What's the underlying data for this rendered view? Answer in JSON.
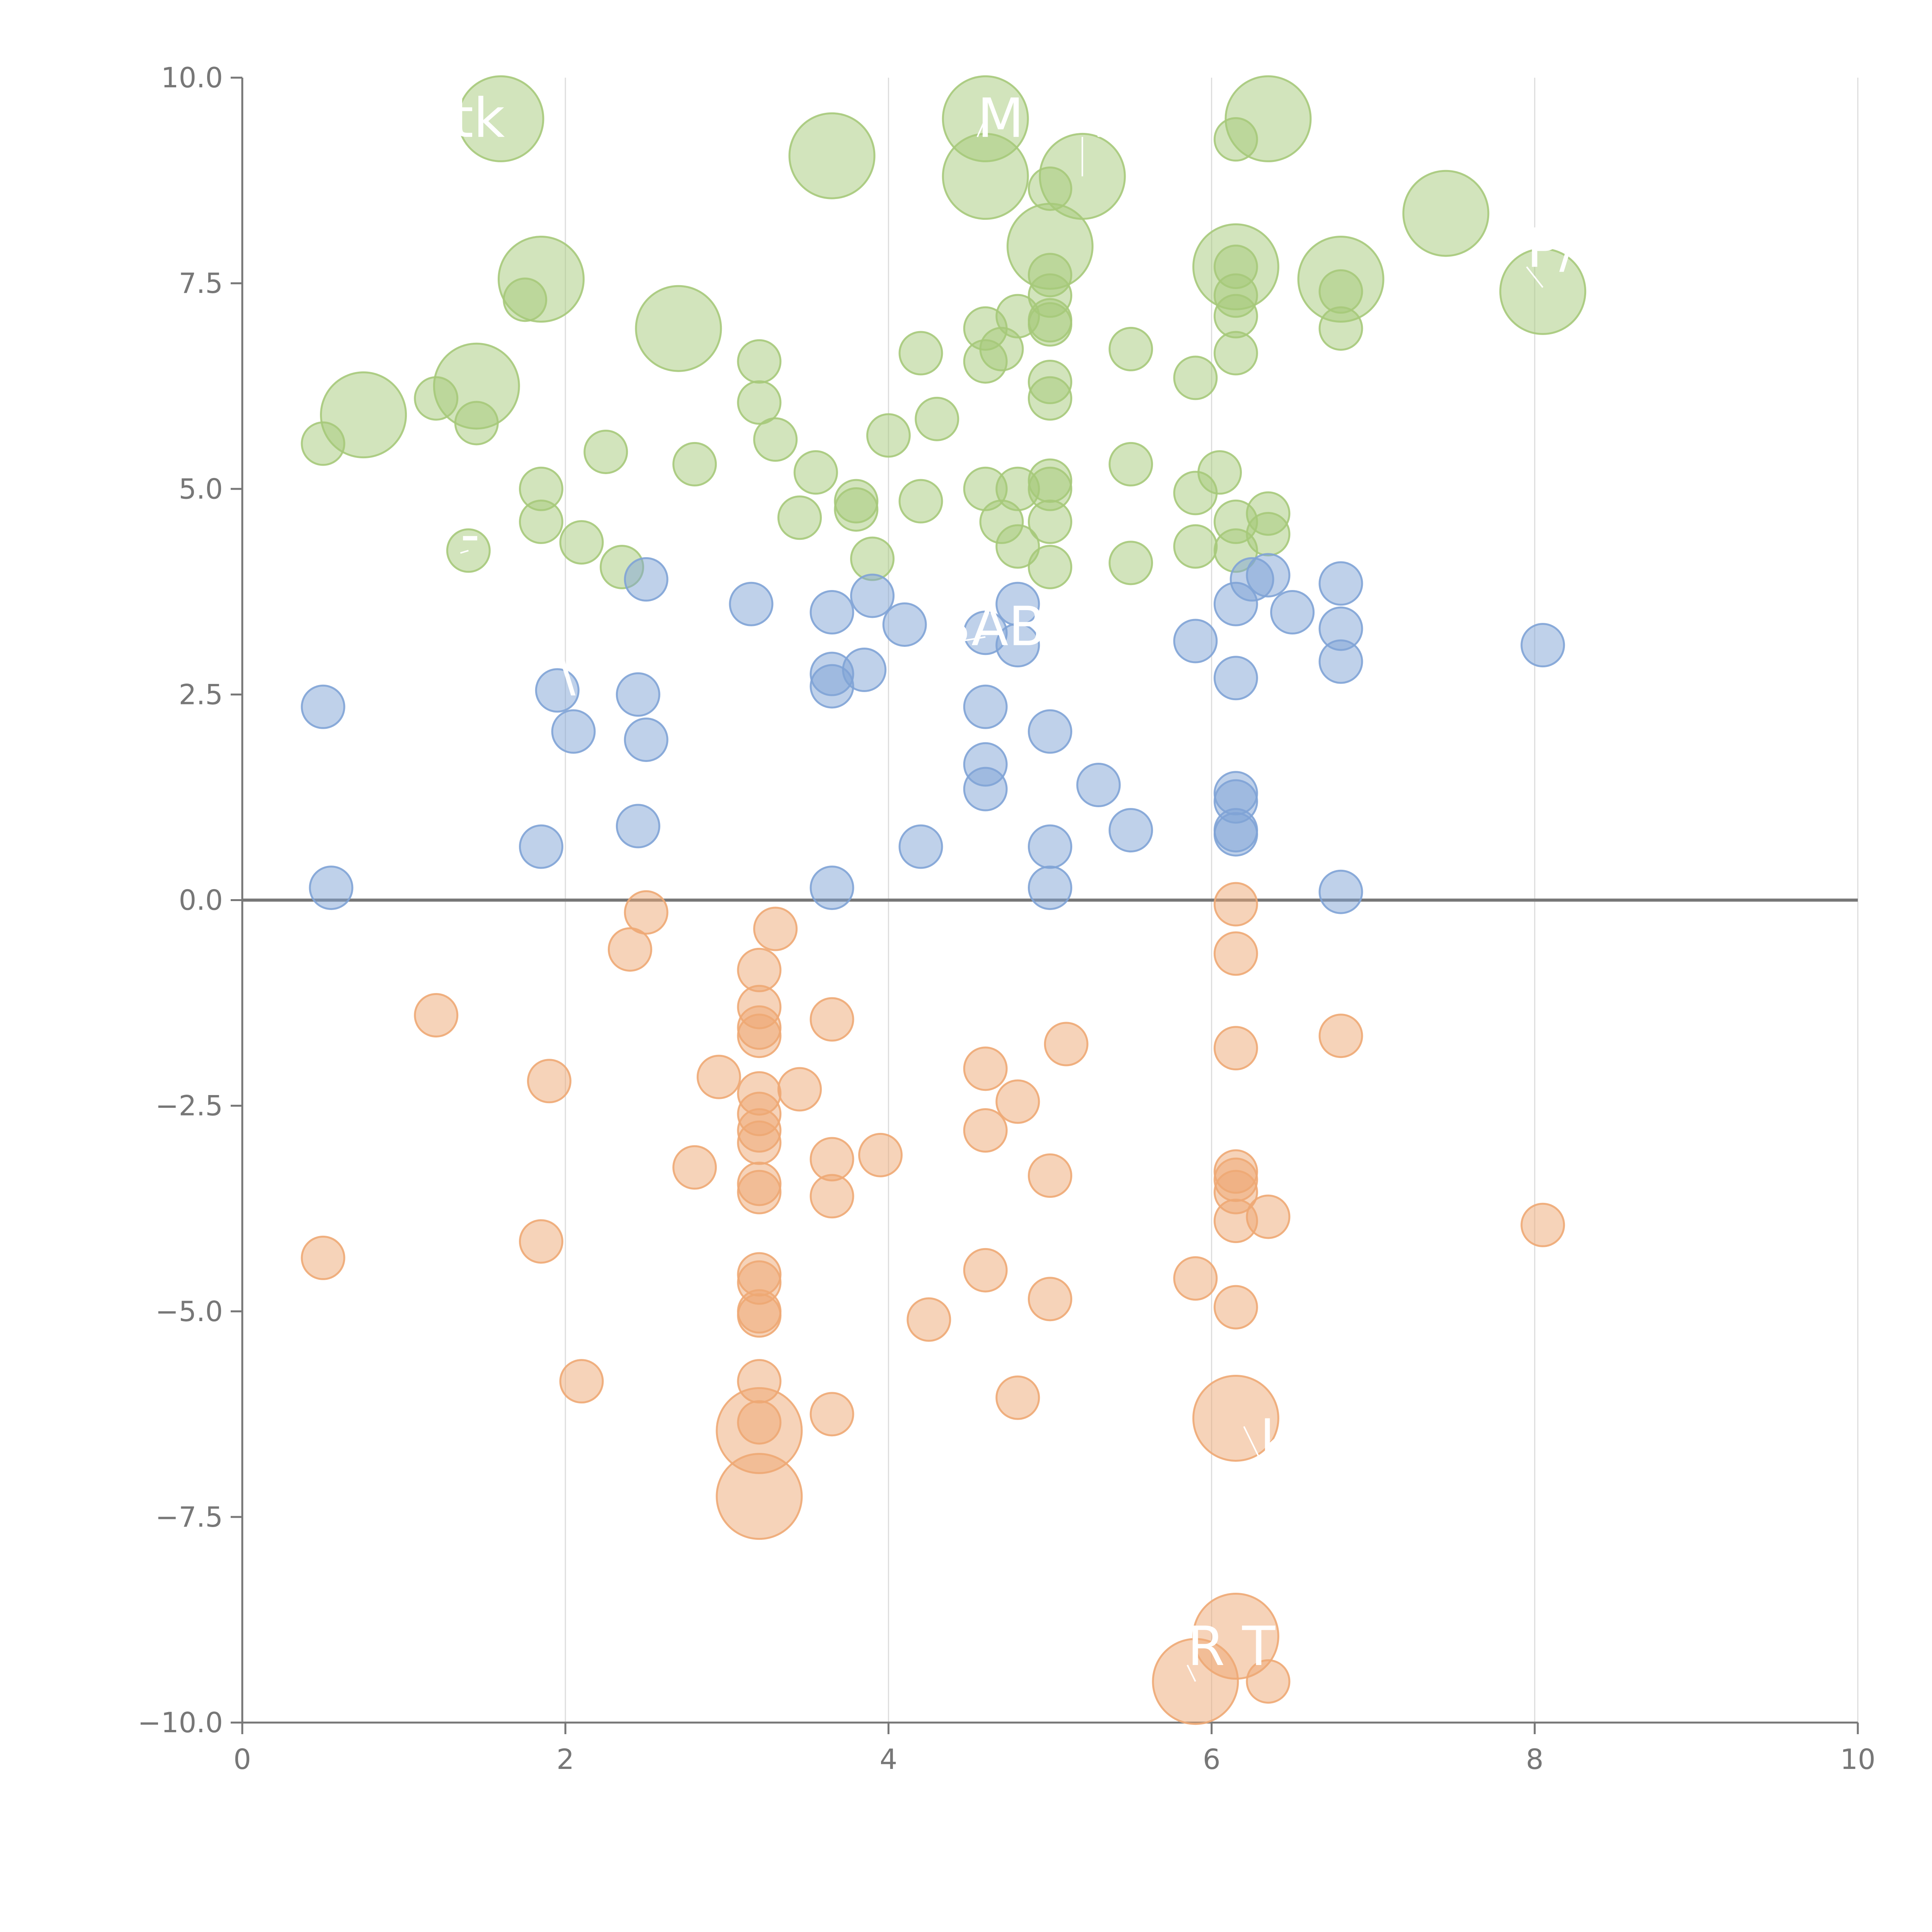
{
  "chart_data": {
    "type": "scatter",
    "title": "",
    "xlabel": "",
    "ylabel": "",
    "xlim": [
      0,
      10
    ],
    "ylim": [
      -10,
      10
    ],
    "x_ticks": [
      0,
      2,
      4,
      6,
      8,
      10
    ],
    "x_tick_labels": [
      "0",
      "2",
      "4",
      "6",
      "8",
      "10"
    ],
    "y_ticks": [
      10,
      7.5,
      5,
      2.5,
      0,
      -2.5,
      -5,
      -7.5,
      -10
    ],
    "y_tick_labels": [
      "10.0",
      "7.5",
      "5.0",
      "2.5",
      "0.0",
      "−2.5",
      "−5.0",
      "−7.5",
      "−10.0"
    ],
    "grid": "vertical",
    "reference_line_y": 0,
    "colors": {
      "high": "#a6c97a",
      "mid": "#7fa3d6",
      "low": "#eea874"
    },
    "series": [
      {
        "name": "high",
        "points": [
          [
            1.6,
            9.5,
            2
          ],
          [
            4.6,
            9.5,
            2
          ],
          [
            6.35,
            9.5,
            2
          ],
          [
            3.65,
            9.05,
            2
          ],
          [
            4.6,
            8.8,
            2
          ],
          [
            5.2,
            8.8,
            2
          ],
          [
            7.45,
            8.35,
            2
          ],
          [
            5.0,
            7.95,
            2
          ],
          [
            1.85,
            7.55,
            2
          ],
          [
            6.15,
            7.7,
            2
          ],
          [
            6.8,
            7.55,
            2
          ],
          [
            8.05,
            7.4,
            2
          ],
          [
            2.7,
            6.95,
            2
          ],
          [
            1.45,
            6.25,
            2
          ],
          [
            0.75,
            5.9,
            2
          ],
          [
            6.15,
            9.25,
            1
          ],
          [
            5.0,
            8.65,
            1
          ],
          [
            5.0,
            7.6,
            1
          ],
          [
            6.15,
            7.7,
            1
          ],
          [
            1.75,
            7.3,
            1
          ],
          [
            5.0,
            7.35,
            1
          ],
          [
            6.15,
            7.35,
            1
          ],
          [
            6.8,
            7.4,
            1
          ],
          [
            4.8,
            7.1,
            1
          ],
          [
            6.15,
            7.1,
            1
          ],
          [
            5.0,
            7.05,
            1
          ],
          [
            5.0,
            7.0,
            1
          ],
          [
            4.6,
            6.95,
            1
          ],
          [
            6.8,
            6.95,
            1
          ],
          [
            4.7,
            6.7,
            1
          ],
          [
            5.5,
            6.7,
            1
          ],
          [
            4.2,
            6.65,
            1
          ],
          [
            6.15,
            6.65,
            1
          ],
          [
            4.6,
            6.55,
            1
          ],
          [
            3.2,
            6.55,
            1
          ],
          [
            5.9,
            6.35,
            1
          ],
          [
            5.0,
            6.3,
            1
          ],
          [
            1.2,
            6.1,
            1
          ],
          [
            5.0,
            6.1,
            1
          ],
          [
            3.2,
            6.05,
            1
          ],
          [
            4.3,
            5.85,
            1
          ],
          [
            1.45,
            5.8,
            1
          ],
          [
            4.0,
            5.65,
            1
          ],
          [
            3.3,
            5.6,
            1
          ],
          [
            0.5,
            5.55,
            1
          ],
          [
            2.25,
            5.45,
            1
          ],
          [
            2.8,
            5.3,
            1
          ],
          [
            5.5,
            5.3,
            1
          ],
          [
            3.55,
            5.2,
            1
          ],
          [
            6.05,
            5.2,
            1
          ],
          [
            5.0,
            5.1,
            1
          ],
          [
            1.85,
            5.0,
            1
          ],
          [
            4.6,
            5.0,
            1
          ],
          [
            4.8,
            5.0,
            1
          ],
          [
            5.0,
            5.0,
            1
          ],
          [
            5.9,
            4.95,
            1
          ],
          [
            3.8,
            4.85,
            1
          ],
          [
            4.2,
            4.85,
            1
          ],
          [
            3.8,
            4.75,
            1
          ],
          [
            6.35,
            4.7,
            1
          ],
          [
            3.45,
            4.65,
            1
          ],
          [
            1.85,
            4.6,
            1
          ],
          [
            4.7,
            4.6,
            1
          ],
          [
            5.0,
            4.6,
            1
          ],
          [
            6.15,
            4.6,
            1
          ],
          [
            6.35,
            4.45,
            1
          ],
          [
            2.1,
            4.35,
            1
          ],
          [
            1.4,
            4.25,
            1
          ],
          [
            4.8,
            4.3,
            1
          ],
          [
            5.9,
            4.3,
            1
          ],
          [
            6.15,
            4.25,
            1
          ],
          [
            3.9,
            4.15,
            1
          ],
          [
            5.5,
            4.1,
            1
          ],
          [
            2.35,
            4.05,
            1
          ],
          [
            5.0,
            4.05,
            1
          ]
        ]
      },
      {
        "name": "mid",
        "points": [
          [
            2.5,
            3.9,
            1
          ],
          [
            6.35,
            3.95,
            1
          ],
          [
            6.25,
            3.9,
            1
          ],
          [
            6.8,
            3.85,
            1
          ],
          [
            3.9,
            3.7,
            1
          ],
          [
            3.15,
            3.6,
            1
          ],
          [
            4.8,
            3.6,
            1
          ],
          [
            6.15,
            3.6,
            1
          ],
          [
            3.65,
            3.5,
            1
          ],
          [
            6.5,
            3.5,
            1
          ],
          [
            4.1,
            3.35,
            1
          ],
          [
            6.8,
            3.3,
            1
          ],
          [
            4.6,
            3.25,
            1
          ],
          [
            5.9,
            3.15,
            1
          ],
          [
            4.8,
            3.1,
            1
          ],
          [
            8.05,
            3.1,
            1
          ],
          [
            6.8,
            2.9,
            1
          ],
          [
            3.85,
            2.8,
            1
          ],
          [
            3.65,
            2.75,
            1
          ],
          [
            6.15,
            2.7,
            1
          ],
          [
            3.65,
            2.6,
            1
          ],
          [
            1.95,
            2.55,
            1
          ],
          [
            2.45,
            2.5,
            1
          ],
          [
            0.5,
            2.35,
            1
          ],
          [
            4.6,
            2.35,
            1
          ],
          [
            2.05,
            2.05,
            1
          ],
          [
            5.0,
            2.05,
            1
          ],
          [
            2.5,
            1.95,
            1
          ],
          [
            4.6,
            1.65,
            1
          ],
          [
            5.3,
            1.4,
            1
          ],
          [
            4.6,
            1.35,
            1
          ],
          [
            6.15,
            1.3,
            1
          ],
          [
            6.15,
            1.2,
            1
          ],
          [
            2.45,
            0.9,
            1
          ],
          [
            5.5,
            0.85,
            1
          ],
          [
            6.15,
            0.85,
            1
          ],
          [
            6.15,
            0.8,
            1
          ],
          [
            1.85,
            0.65,
            1
          ],
          [
            4.2,
            0.65,
            1
          ],
          [
            5.0,
            0.65,
            1
          ],
          [
            0.55,
            0.15,
            1
          ],
          [
            3.65,
            0.15,
            1
          ],
          [
            5.0,
            0.15,
            1
          ],
          [
            6.8,
            0.1,
            1
          ]
        ]
      },
      {
        "name": "low",
        "points": [
          [
            2.5,
            -0.15,
            1
          ],
          [
            6.15,
            -0.05,
            1
          ],
          [
            3.3,
            -0.35,
            1
          ],
          [
            2.4,
            -0.6,
            1
          ],
          [
            6.15,
            -0.65,
            1
          ],
          [
            3.2,
            -0.85,
            1
          ],
          [
            3.2,
            -1.3,
            1
          ],
          [
            1.2,
            -1.4,
            1
          ],
          [
            3.65,
            -1.45,
            1
          ],
          [
            3.2,
            -1.55,
            1
          ],
          [
            3.2,
            -1.65,
            1
          ],
          [
            6.8,
            -1.65,
            1
          ],
          [
            5.1,
            -1.75,
            1
          ],
          [
            6.15,
            -1.8,
            1
          ],
          [
            4.6,
            -2.05,
            1
          ],
          [
            2.95,
            -2.15,
            1
          ],
          [
            1.9,
            -2.2,
            1
          ],
          [
            3.45,
            -2.3,
            1
          ],
          [
            3.2,
            -2.35,
            1
          ],
          [
            4.8,
            -2.45,
            1
          ],
          [
            3.2,
            -2.6,
            1
          ],
          [
            4.6,
            -2.8,
            1
          ],
          [
            3.2,
            -2.8,
            1
          ],
          [
            3.2,
            -2.95,
            1
          ],
          [
            3.95,
            -3.1,
            1
          ],
          [
            3.65,
            -3.15,
            1
          ],
          [
            2.8,
            -3.25,
            1
          ],
          [
            6.15,
            -3.3,
            1
          ],
          [
            5.0,
            -3.35,
            1
          ],
          [
            6.15,
            -3.4,
            1
          ],
          [
            3.2,
            -3.45,
            1
          ],
          [
            3.2,
            -3.55,
            1
          ],
          [
            6.15,
            -3.55,
            1
          ],
          [
            3.65,
            -3.6,
            1
          ],
          [
            6.35,
            -3.85,
            1
          ],
          [
            6.15,
            -3.9,
            1
          ],
          [
            8.05,
            -3.95,
            1
          ],
          [
            1.85,
            -4.15,
            1
          ],
          [
            0.5,
            -4.35,
            1
          ],
          [
            4.6,
            -4.5,
            1
          ],
          [
            3.2,
            -4.55,
            1
          ],
          [
            3.2,
            -4.65,
            1
          ],
          [
            5.9,
            -4.6,
            1
          ],
          [
            5.0,
            -4.85,
            1
          ],
          [
            6.15,
            -4.95,
            1
          ],
          [
            3.2,
            -5.0,
            1
          ],
          [
            3.2,
            -5.05,
            1
          ],
          [
            4.25,
            -5.1,
            1
          ],
          [
            2.1,
            -5.85,
            1
          ],
          [
            3.2,
            -5.85,
            1
          ],
          [
            4.8,
            -6.05,
            1
          ],
          [
            3.65,
            -6.25,
            1
          ],
          [
            3.2,
            -6.35,
            1
          ],
          [
            3.2,
            -6.45,
            2
          ],
          [
            6.15,
            -6.3,
            2
          ],
          [
            3.2,
            -7.25,
            2
          ],
          [
            6.15,
            -8.95,
            2
          ],
          [
            5.9,
            -9.5,
            2
          ],
          [
            6.35,
            -9.5,
            1
          ]
        ]
      }
    ],
    "annotations": [
      {
        "text": "tk",
        "x": 1.3,
        "y": 9.28,
        "x0": 1.35,
        "y0": 9.4
      },
      {
        "text": "M",
        "x": 4.55,
        "y": 9.28,
        "x0": 4.6,
        "y0": 9.5
      },
      {
        "text": "VI",
        "x": 5.2,
        "y": 9.28,
        "x0": 5.2,
        "y0": 8.8
      },
      {
        "text": "P/",
        "x": 7.95,
        "y": 7.7,
        "x0": 8.05,
        "y0": 7.45
      },
      {
        "text": "-",
        "x": 1.35,
        "y": 4.22,
        "x0": 1.4,
        "y0": 4.25
      },
      {
        "text": "3AB",
        "x": 4.3,
        "y": 3.1,
        "x0": 4.6,
        "y0": 3.2
      },
      {
        "text": "\\",
        "x": 1.95,
        "y": 2.55,
        "x0": 1.95,
        "y0": 2.55
      },
      {
        "text": "k",
        "x": 6.3,
        "y": -6.8,
        "x0": 6.2,
        "y0": -6.4
      },
      {
        "text": "R T",
        "x": 5.85,
        "y": -9.3,
        "x0": 5.9,
        "y0": -9.5
      }
    ]
  }
}
